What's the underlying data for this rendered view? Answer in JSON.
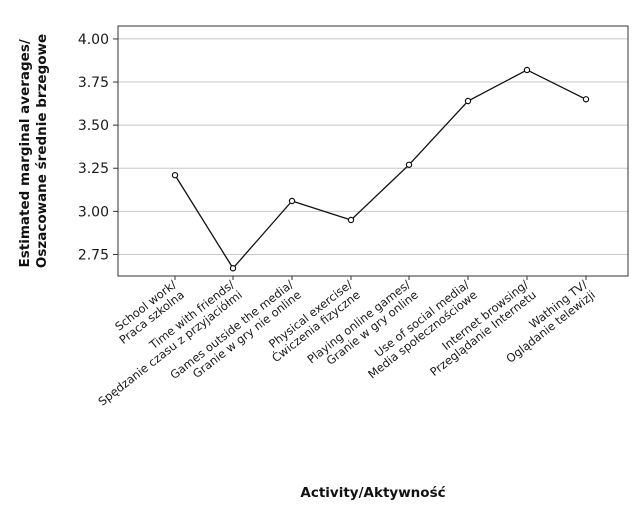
{
  "chart_data": {
    "type": "line",
    "xlabel": "Activity/Aktywność",
    "ylabel": [
      "Estimated marginal averages/",
      "Oszacowane średnie brzegowe"
    ],
    "ylim": [
      2.625,
      4.075
    ],
    "yticks": [
      2.75,
      3.0,
      3.25,
      3.5,
      3.75,
      4.0
    ],
    "ytick_labels": [
      "2.75",
      "3.00",
      "3.25",
      "3.50",
      "3.75",
      "4.00"
    ],
    "grid": true,
    "categories": [
      [
        "School work/",
        "Praca szkolna"
      ],
      [
        "Time with friends/",
        "Spędzanie czasu z przyjaciółmi"
      ],
      [
        "Games outside the media/",
        "Granie w gry nie online"
      ],
      [
        "Physical exercise/",
        "Ćwiczenia fizyczne"
      ],
      [
        "Playing online games/",
        "Granie w gry online"
      ],
      [
        "Use of social media/",
        "Media społecznościowe"
      ],
      [
        "Internet browsing/",
        "Przeglądanie Internetu"
      ],
      [
        "Wathing TV/",
        "Oglądanie telewizji"
      ]
    ],
    "series": [
      {
        "values": [
          3.21,
          2.67,
          3.06,
          2.95,
          3.27,
          3.64,
          3.82,
          3.65
        ]
      }
    ]
  }
}
